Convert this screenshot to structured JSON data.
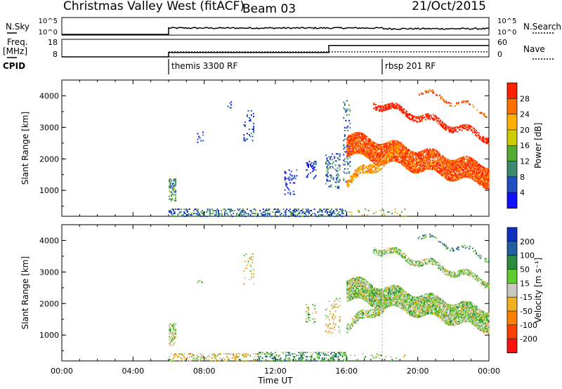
{
  "header": {
    "station": "Christmas Valley West (fitACF)",
    "beam": "Beam 03",
    "date": "21/Oct/2015"
  },
  "top_panels": {
    "nsky_label": "N.Sky",
    "nsky_ticks": [
      "10^5",
      "10^0"
    ],
    "nsearch_label": "N.Search",
    "nsearch_ticks": [
      "10^5",
      "10^0"
    ],
    "freq_label_1": "Freq.",
    "freq_label_2": "[MHz]",
    "freq_ticks": [
      "18",
      "8"
    ],
    "nave_label": "Nave",
    "nave_ticks": [
      "60",
      "0"
    ],
    "cpid_label": "CPID",
    "cpid_segments": [
      {
        "start": 6.0,
        "label": "themis 3300 RF"
      },
      {
        "start": 18.0,
        "label": "rbsp 201 RF"
      }
    ],
    "freq_steps": [
      {
        "start": 6.0,
        "end": 15.0,
        "value": 10.5
      },
      {
        "start": 15.0,
        "end": 24.0,
        "value": 14.5
      }
    ],
    "nave_level": 17
  },
  "chart_data": [
    {
      "type": "heatmap",
      "name": "power-panel",
      "ylabel": "Slant Range [km]",
      "yticks": [
        "1000",
        "2000",
        "3000",
        "4000"
      ],
      "ylim": [
        180,
        4500
      ],
      "xlim": [
        0,
        24
      ],
      "colorbar_label": "Power [dB]",
      "colorbar_ticks": [
        "4",
        "8",
        "12",
        "16",
        "20",
        "24",
        "28"
      ],
      "colors": [
        "#1010ff",
        "#2050c0",
        "#3a8a70",
        "#55aa33",
        "#cccc00",
        "#ffb000",
        "#ff7000",
        "#ff2000"
      ],
      "scatter_regions": [
        {
          "t0": 6.0,
          "t1": 6.4,
          "r0": 700,
          "r1": 1400,
          "density": 0.55,
          "bias": 3
        },
        {
          "t0": 7.6,
          "t1": 7.9,
          "r0": 2550,
          "r1": 2900,
          "density": 0.15,
          "bias": 1
        },
        {
          "t0": 9.3,
          "t1": 9.5,
          "r0": 3600,
          "r1": 4050,
          "density": 0.15,
          "bias": 1
        },
        {
          "t0": 10.2,
          "t1": 10.8,
          "r0": 2600,
          "r1": 3600,
          "density": 0.15,
          "bias": 1
        },
        {
          "t0": 12.5,
          "t1": 13.2,
          "r0": 900,
          "r1": 1700,
          "density": 0.2,
          "bias": 1
        },
        {
          "t0": 13.7,
          "t1": 14.3,
          "r0": 1400,
          "r1": 2000,
          "density": 0.25,
          "bias": 1
        },
        {
          "t0": 14.8,
          "t1": 15.6,
          "r0": 1100,
          "r1": 2200,
          "density": 0.25,
          "bias": 2
        },
        {
          "t0": 15.8,
          "t1": 16.2,
          "r0": 1300,
          "r1": 3900,
          "density": 0.18,
          "bias": 2
        },
        {
          "t0": 6.0,
          "t1": 16.0,
          "r0": 200,
          "r1": 450,
          "density": 0.35,
          "bias": 2
        },
        {
          "t0": 16.0,
          "t1": 19.5,
          "r0": 200,
          "r1": 450,
          "density": 0.08,
          "bias": 4
        }
      ],
      "bands": [
        {
          "t0": 16.0,
          "t1": 24.0,
          "center0": 2500,
          "center1": 1500,
          "width": 650,
          "density": 0.75,
          "bias": 6
        },
        {
          "t0": 16.0,
          "t1": 19.0,
          "center0": 1300,
          "center1": 2300,
          "width": 250,
          "density": 0.5,
          "bias": 5
        },
        {
          "t0": 17.5,
          "t1": 24.0,
          "center0": 3800,
          "center1": 2700,
          "width": 180,
          "density": 0.55,
          "bias": 7
        },
        {
          "t0": 20.0,
          "t1": 24.0,
          "center0": 4200,
          "center1": 3500,
          "width": 120,
          "density": 0.3,
          "bias": 6
        }
      ]
    },
    {
      "type": "heatmap",
      "name": "velocity-panel",
      "ylabel": "Slant Range [km]",
      "yticks": [
        "1000",
        "2000",
        "3000",
        "4000"
      ],
      "ylim": [
        180,
        4500
      ],
      "xlim": [
        0,
        24
      ],
      "xlabel": "Time UT",
      "xticks": [
        "00:00",
        "04:00",
        "08:00",
        "12:00",
        "16:00",
        "20:00",
        "00:00"
      ],
      "colorbar_label": "Velocity [m s⁻¹]",
      "colorbar_ticks": [
        "200",
        "100",
        "50",
        "15",
        "-15",
        "-50",
        "-100",
        "-200"
      ],
      "colors": [
        "#1030c0",
        "#2060a0",
        "#2a8a40",
        "#60cc30",
        "#c8c8c0",
        "#f0b020",
        "#ff8000",
        "#ff4000",
        "#ff1010"
      ],
      "scatter_regions": [
        {
          "t0": 6.0,
          "t1": 6.4,
          "r0": 700,
          "r1": 1400,
          "density": 0.55,
          "bias": 4
        },
        {
          "t0": 7.6,
          "t1": 7.9,
          "r0": 2650,
          "r1": 2900,
          "density": 0.12,
          "bias": 4
        },
        {
          "t0": 10.2,
          "t1": 10.8,
          "r0": 2600,
          "r1": 3600,
          "density": 0.12,
          "bias": 5
        },
        {
          "t0": 13.7,
          "t1": 14.3,
          "r0": 1400,
          "r1": 2000,
          "density": 0.15,
          "bias": 4
        },
        {
          "t0": 14.8,
          "t1": 15.6,
          "r0": 1100,
          "r1": 2200,
          "density": 0.15,
          "bias": 5
        },
        {
          "t0": 6.0,
          "t1": 11.0,
          "r0": 200,
          "r1": 450,
          "density": 0.35,
          "bias": 5
        },
        {
          "t0": 11.0,
          "t1": 16.0,
          "r0": 200,
          "r1": 500,
          "density": 0.35,
          "bias": 3
        },
        {
          "t0": 16.0,
          "t1": 19.5,
          "r0": 200,
          "r1": 450,
          "density": 0.08,
          "bias": 4
        }
      ],
      "bands": [
        {
          "t0": 16.0,
          "t1": 24.0,
          "center0": 2500,
          "center1": 1500,
          "width": 650,
          "density": 0.75,
          "bias": 4
        },
        {
          "t0": 16.0,
          "t1": 19.0,
          "center0": 1300,
          "center1": 2300,
          "width": 250,
          "density": 0.5,
          "bias": 4
        },
        {
          "t0": 17.5,
          "t1": 24.0,
          "center0": 3800,
          "center1": 2700,
          "width": 180,
          "density": 0.55,
          "bias": 4
        },
        {
          "t0": 20.0,
          "t1": 24.0,
          "center0": 4200,
          "center1": 3500,
          "width": 120,
          "density": 0.3,
          "bias": 3
        }
      ]
    }
  ]
}
